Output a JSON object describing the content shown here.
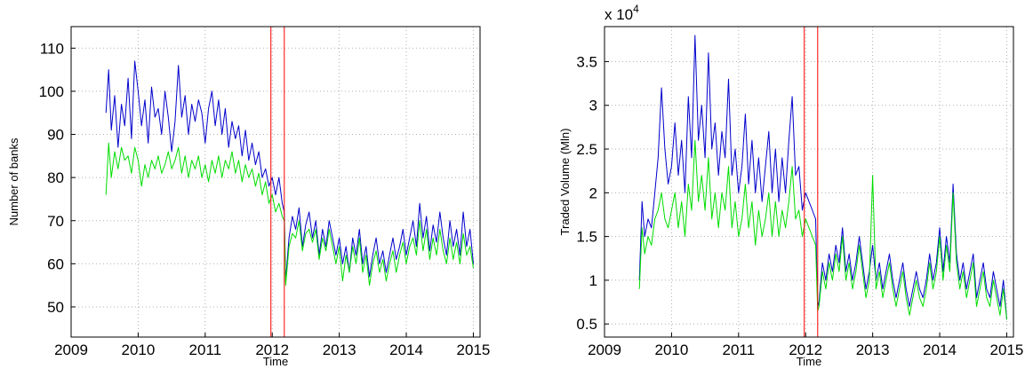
{
  "chart_data": [
    {
      "type": "line",
      "title": "",
      "xlabel": "Time",
      "ylabel": "Number of banks",
      "xlim": [
        2009,
        2015.1
      ],
      "ylim": [
        43,
        115
      ],
      "xticks": [
        "2009",
        "2010",
        "2011",
        "2012",
        "2013",
        "2014",
        "2015"
      ],
      "yticks": [
        "50",
        "60",
        "70",
        "80",
        "90",
        "100",
        "110"
      ],
      "grid": true,
      "vlines": [
        2011.98,
        2012.18
      ],
      "vline_color": "#ff0000",
      "series": [
        {
          "color": "#0000cc",
          "x": [
            2009.52,
            2009.56,
            2009.6,
            2009.65,
            2009.7,
            2009.75,
            2009.8,
            2009.85,
            2009.9,
            2009.95,
            2010.0,
            2010.05,
            2010.1,
            2010.15,
            2010.2,
            2010.25,
            2010.3,
            2010.35,
            2010.4,
            2010.45,
            2010.5,
            2010.55,
            2010.6,
            2010.65,
            2010.7,
            2010.75,
            2010.8,
            2010.85,
            2010.9,
            2010.95,
            2011.0,
            2011.05,
            2011.1,
            2011.15,
            2011.2,
            2011.25,
            2011.3,
            2011.35,
            2011.4,
            2011.45,
            2011.5,
            2011.55,
            2011.6,
            2011.65,
            2011.7,
            2011.75,
            2011.8,
            2011.85,
            2011.9,
            2011.95,
            2012.0,
            2012.05,
            2012.1,
            2012.15,
            2012.18,
            2012.2,
            2012.25,
            2012.3,
            2012.35,
            2012.4,
            2012.45,
            2012.5,
            2012.55,
            2012.6,
            2012.65,
            2012.7,
            2012.75,
            2012.8,
            2012.85,
            2012.9,
            2012.95,
            2013.0,
            2013.05,
            2013.1,
            2013.15,
            2013.2,
            2013.25,
            2013.3,
            2013.35,
            2013.4,
            2013.45,
            2013.5,
            2013.55,
            2013.6,
            2013.65,
            2013.7,
            2013.75,
            2013.8,
            2013.85,
            2013.9,
            2013.95,
            2014.0,
            2014.05,
            2014.1,
            2014.15,
            2014.2,
            2014.25,
            2014.3,
            2014.35,
            2014.4,
            2014.45,
            2014.5,
            2014.55,
            2014.6,
            2014.65,
            2014.7,
            2014.75,
            2014.8,
            2014.85,
            2014.9,
            2014.95,
            2015.0
          ],
          "y": [
            95,
            105,
            91,
            99,
            87,
            97,
            92,
            103,
            89,
            107,
            100,
            92,
            98,
            88,
            101,
            94,
            96,
            90,
            100,
            94,
            86,
            93,
            106,
            94,
            99,
            90,
            97,
            93,
            98,
            95,
            88,
            96,
            100,
            92,
            98,
            90,
            96,
            87,
            93,
            89,
            92,
            85,
            91,
            84,
            88,
            83,
            86,
            80,
            82,
            78,
            80,
            76,
            80,
            74,
            72,
            56,
            66,
            71,
            68,
            73,
            64,
            69,
            72,
            66,
            70,
            62,
            68,
            64,
            70,
            66,
            62,
            66,
            60,
            64,
            58,
            66,
            62,
            68,
            60,
            64,
            57,
            62,
            66,
            60,
            63,
            58,
            62,
            66,
            61,
            64,
            68,
            62,
            66,
            70,
            64,
            74,
            66,
            71,
            63,
            69,
            65,
            72,
            66,
            62,
            70,
            64,
            68,
            62,
            72,
            64,
            68,
            60
          ]
        },
        {
          "color": "#00dd00",
          "x": [
            2009.52,
            2009.56,
            2009.6,
            2009.65,
            2009.7,
            2009.75,
            2009.8,
            2009.85,
            2009.9,
            2009.95,
            2010.0,
            2010.05,
            2010.1,
            2010.15,
            2010.2,
            2010.25,
            2010.3,
            2010.35,
            2010.4,
            2010.45,
            2010.5,
            2010.55,
            2010.6,
            2010.65,
            2010.7,
            2010.75,
            2010.8,
            2010.85,
            2010.9,
            2010.95,
            2011.0,
            2011.05,
            2011.1,
            2011.15,
            2011.2,
            2011.25,
            2011.3,
            2011.35,
            2011.4,
            2011.45,
            2011.5,
            2011.55,
            2011.6,
            2011.65,
            2011.7,
            2011.75,
            2011.8,
            2011.85,
            2011.9,
            2011.95,
            2012.0,
            2012.05,
            2012.1,
            2012.15,
            2012.18,
            2012.2,
            2012.25,
            2012.3,
            2012.35,
            2012.4,
            2012.45,
            2012.5,
            2012.55,
            2012.6,
            2012.65,
            2012.7,
            2012.75,
            2012.8,
            2012.85,
            2012.9,
            2012.95,
            2013.0,
            2013.05,
            2013.1,
            2013.15,
            2013.2,
            2013.25,
            2013.3,
            2013.35,
            2013.4,
            2013.45,
            2013.5,
            2013.55,
            2013.6,
            2013.65,
            2013.7,
            2013.75,
            2013.8,
            2013.85,
            2013.9,
            2013.95,
            2014.0,
            2014.05,
            2014.1,
            2014.15,
            2014.2,
            2014.25,
            2014.3,
            2014.35,
            2014.4,
            2014.45,
            2014.5,
            2014.55,
            2014.6,
            2014.65,
            2014.7,
            2014.75,
            2014.8,
            2014.85,
            2014.9,
            2014.95,
            2015.0
          ],
          "y": [
            76,
            88,
            80,
            86,
            82,
            87,
            84,
            85,
            81,
            87,
            84,
            78,
            83,
            80,
            84,
            82,
            85,
            81,
            83,
            86,
            82,
            84,
            87,
            81,
            85,
            80,
            84,
            82,
            85,
            80,
            83,
            79,
            84,
            81,
            85,
            80,
            84,
            82,
            86,
            81,
            84,
            79,
            83,
            80,
            82,
            78,
            81,
            76,
            79,
            74,
            76,
            72,
            74,
            71,
            70,
            55,
            64,
            67,
            66,
            70,
            63,
            67,
            68,
            65,
            68,
            61,
            66,
            63,
            68,
            64,
            60,
            64,
            56,
            62,
            58,
            64,
            60,
            66,
            58,
            62,
            55,
            60,
            63,
            58,
            61,
            56,
            60,
            63,
            58,
            62,
            65,
            60,
            64,
            66,
            62,
            70,
            63,
            68,
            61,
            66,
            62,
            68,
            63,
            60,
            66,
            61,
            65,
            60,
            67,
            62,
            64,
            59
          ]
        }
      ]
    },
    {
      "type": "line",
      "title": "",
      "xlabel": "Time",
      "ylabel": "Traded Volume (Mln)",
      "multiplier_label": "x 10",
      "multiplier_exponent": "4",
      "xlim": [
        2009,
        2015.1
      ],
      "ylim": [
        0.35,
        3.9
      ],
      "xticks": [
        "2009",
        "2010",
        "2011",
        "2012",
        "2013",
        "2014",
        "2015"
      ],
      "yticks": [
        "0.5",
        "1",
        "1.5",
        "2",
        "2.5",
        "3",
        "3.5"
      ],
      "grid": true,
      "vlines": [
        2011.98,
        2012.18
      ],
      "vline_color": "#ff0000",
      "series": [
        {
          "color": "#0000cc",
          "x": [
            2009.52,
            2009.56,
            2009.6,
            2009.65,
            2009.7,
            2009.75,
            2009.8,
            2009.85,
            2009.9,
            2009.95,
            2010.0,
            2010.05,
            2010.1,
            2010.15,
            2010.2,
            2010.25,
            2010.3,
            2010.35,
            2010.4,
            2010.45,
            2010.5,
            2010.55,
            2010.6,
            2010.65,
            2010.7,
            2010.75,
            2010.8,
            2010.85,
            2010.9,
            2010.95,
            2011.0,
            2011.05,
            2011.1,
            2011.15,
            2011.2,
            2011.25,
            2011.3,
            2011.35,
            2011.4,
            2011.45,
            2011.5,
            2011.55,
            2011.6,
            2011.65,
            2011.7,
            2011.75,
            2011.8,
            2011.85,
            2011.9,
            2011.95,
            2012.0,
            2012.05,
            2012.1,
            2012.15,
            2012.18,
            2012.2,
            2012.25,
            2012.3,
            2012.35,
            2012.4,
            2012.45,
            2012.5,
            2012.55,
            2012.6,
            2012.65,
            2012.7,
            2012.75,
            2012.8,
            2012.85,
            2012.9,
            2012.95,
            2013.0,
            2013.05,
            2013.1,
            2013.15,
            2013.2,
            2013.25,
            2013.3,
            2013.35,
            2013.4,
            2013.45,
            2013.5,
            2013.55,
            2013.6,
            2013.65,
            2013.7,
            2013.75,
            2013.8,
            2013.85,
            2013.9,
            2013.95,
            2014.0,
            2014.05,
            2014.1,
            2014.15,
            2014.2,
            2014.25,
            2014.3,
            2014.35,
            2014.4,
            2014.45,
            2014.5,
            2014.55,
            2014.6,
            2014.65,
            2014.7,
            2014.75,
            2014.8,
            2014.85,
            2014.9,
            2014.95,
            2015.0
          ],
          "y": [
            1.0,
            1.9,
            1.5,
            1.7,
            1.6,
            2.0,
            2.4,
            3.2,
            2.5,
            2.1,
            2.3,
            2.8,
            2.2,
            2.6,
            2.0,
            3.1,
            2.4,
            3.8,
            2.6,
            3.0,
            2.4,
            3.6,
            2.5,
            2.8,
            2.2,
            2.7,
            2.4,
            3.3,
            2.2,
            2.5,
            2.0,
            2.3,
            2.9,
            2.1,
            2.6,
            2.0,
            2.4,
            1.9,
            2.3,
            2.7,
            2.0,
            2.5,
            1.9,
            2.4,
            2.0,
            2.6,
            3.1,
            2.2,
            2.3,
            1.8,
            2.0,
            1.9,
            1.8,
            1.7,
            0.7,
            0.75,
            1.2,
            1.0,
            1.3,
            1.1,
            1.4,
            1.2,
            1.6,
            1.1,
            1.3,
            1.0,
            1.2,
            1.5,
            1.2,
            0.9,
            1.1,
            1.4,
            1.0,
            1.2,
            0.9,
            1.1,
            1.3,
            1.0,
            0.8,
            1.0,
            1.2,
            0.9,
            0.7,
            0.9,
            1.1,
            0.9,
            0.8,
            1.0,
            1.3,
            1.0,
            1.2,
            1.6,
            1.1,
            1.5,
            1.2,
            2.1,
            1.3,
            1.0,
            1.2,
            0.9,
            1.1,
            1.3,
            0.8,
            1.0,
            1.2,
            0.9,
            0.8,
            1.1,
            0.9,
            0.7,
            1.0,
            0.55
          ]
        },
        {
          "color": "#00dd00",
          "x": [
            2009.52,
            2009.56,
            2009.6,
            2009.65,
            2009.7,
            2009.75,
            2009.8,
            2009.85,
            2009.9,
            2009.95,
            2010.0,
            2010.05,
            2010.1,
            2010.15,
            2010.2,
            2010.25,
            2010.3,
            2010.35,
            2010.4,
            2010.45,
            2010.5,
            2010.55,
            2010.6,
            2010.65,
            2010.7,
            2010.75,
            2010.8,
            2010.85,
            2010.9,
            2010.95,
            2011.0,
            2011.05,
            2011.1,
            2011.15,
            2011.2,
            2011.25,
            2011.3,
            2011.35,
            2011.4,
            2011.45,
            2011.5,
            2011.55,
            2011.6,
            2011.65,
            2011.7,
            2011.75,
            2011.8,
            2011.85,
            2011.9,
            2011.95,
            2012.0,
            2012.05,
            2012.1,
            2012.15,
            2012.18,
            2012.2,
            2012.25,
            2012.3,
            2012.35,
            2012.4,
            2012.45,
            2012.5,
            2012.55,
            2012.6,
            2012.65,
            2012.7,
            2012.75,
            2012.8,
            2012.85,
            2012.9,
            2012.95,
            2013.0,
            2013.05,
            2013.1,
            2013.15,
            2013.2,
            2013.25,
            2013.3,
            2013.35,
            2013.4,
            2013.45,
            2013.5,
            2013.55,
            2013.6,
            2013.65,
            2013.7,
            2013.75,
            2013.8,
            2013.85,
            2013.9,
            2013.95,
            2014.0,
            2014.05,
            2014.1,
            2014.15,
            2014.2,
            2014.25,
            2014.3,
            2014.35,
            2014.4,
            2014.45,
            2014.5,
            2014.55,
            2014.6,
            2014.65,
            2014.7,
            2014.75,
            2014.8,
            2014.85,
            2014.9,
            2014.95,
            2015.0
          ],
          "y": [
            0.9,
            1.6,
            1.3,
            1.5,
            1.4,
            1.7,
            1.8,
            2.0,
            1.7,
            1.6,
            1.8,
            2.0,
            1.6,
            1.9,
            1.5,
            2.1,
            1.8,
            2.6,
            1.9,
            2.2,
            1.8,
            2.4,
            1.7,
            2.0,
            1.6,
            2.0,
            1.8,
            2.3,
            1.6,
            1.9,
            1.5,
            1.7,
            2.1,
            1.6,
            1.9,
            1.4,
            1.8,
            1.5,
            1.7,
            2.0,
            1.5,
            1.9,
            1.5,
            1.8,
            1.6,
            1.9,
            2.3,
            1.7,
            1.8,
            1.5,
            1.7,
            1.6,
            1.5,
            1.4,
            0.65,
            0.7,
            1.1,
            0.9,
            1.2,
            1.0,
            1.3,
            1.1,
            1.5,
            1.0,
            1.2,
            0.9,
            1.1,
            1.4,
            1.1,
            0.8,
            1.0,
            2.2,
            0.9,
            1.1,
            0.8,
            1.0,
            1.2,
            0.9,
            0.7,
            0.9,
            1.1,
            0.8,
            0.6,
            0.8,
            1.0,
            0.8,
            0.7,
            0.9,
            1.2,
            0.9,
            1.1,
            1.5,
            1.0,
            1.4,
            1.1,
            2.0,
            1.2,
            0.9,
            1.1,
            0.8,
            1.0,
            1.2,
            0.7,
            0.9,
            1.1,
            0.8,
            0.7,
            1.0,
            0.8,
            0.6,
            0.9,
            0.55
          ]
        }
      ]
    }
  ]
}
